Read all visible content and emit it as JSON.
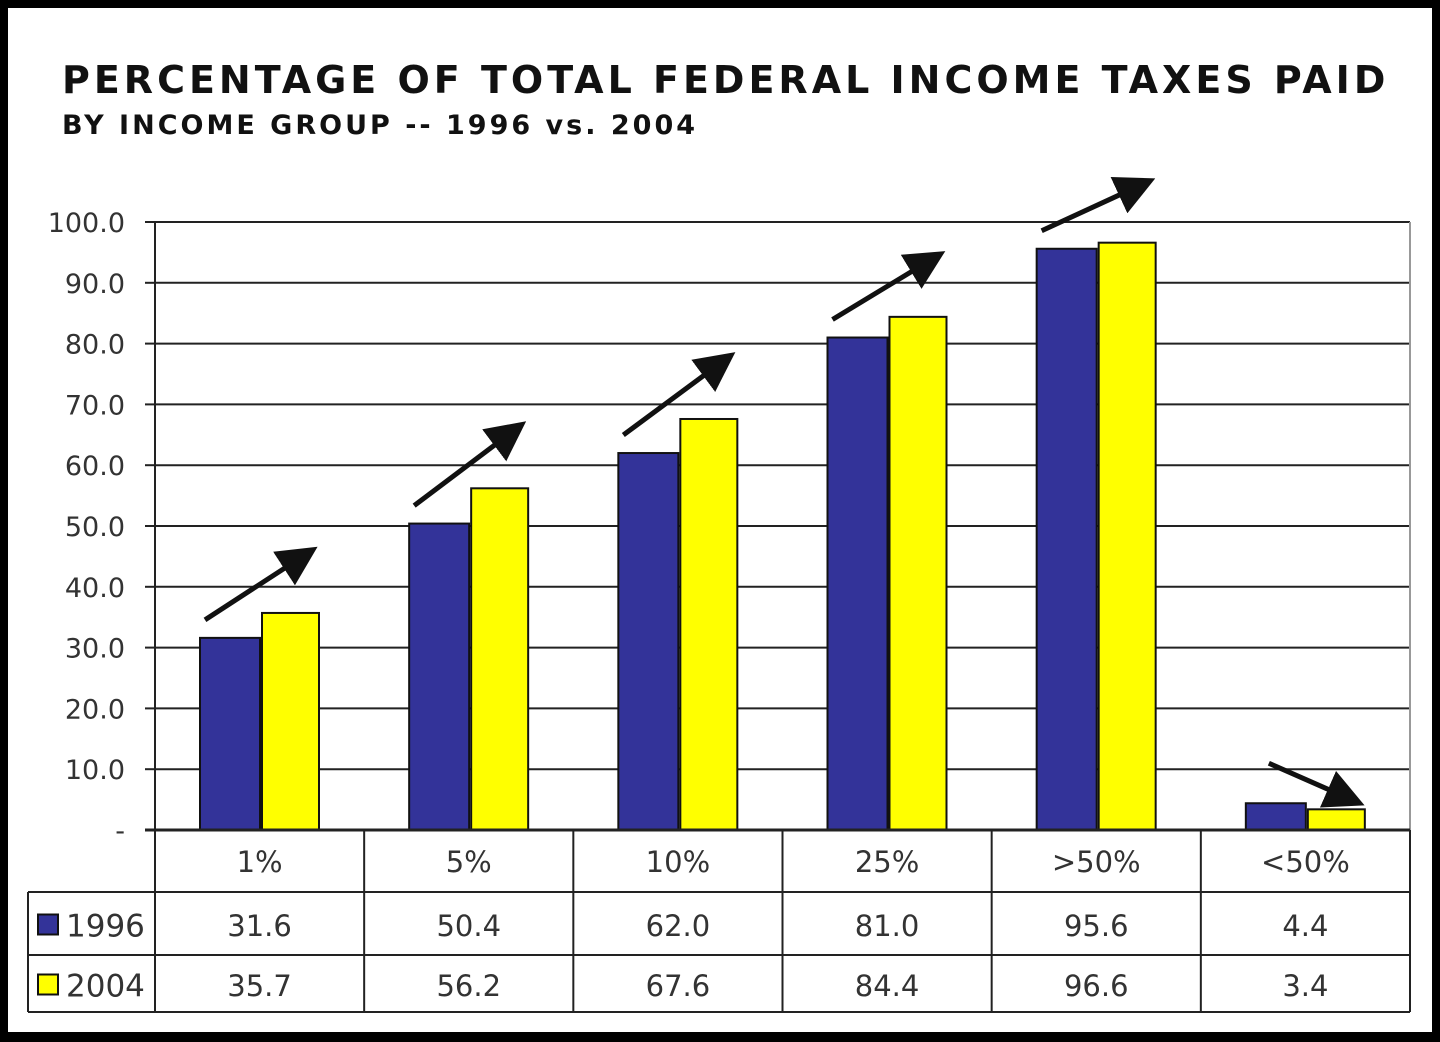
{
  "chart_data": {
    "type": "bar",
    "title": "PERCENTAGE OF TOTAL FEDERAL INCOME TAXES PAID",
    "subtitle": "BY INCOME GROUP -- 1996 vs. 2004",
    "categories": [
      "1%",
      "5%",
      "10%",
      "25%",
      ">50%",
      "<50%"
    ],
    "series": [
      {
        "name": "1996",
        "color": "#333399",
        "values": [
          31.6,
          50.4,
          62.0,
          81.0,
          95.6,
          4.4
        ],
        "labels": [
          "31.6",
          "50.4",
          "62.0",
          "81.0",
          "95.6",
          "4.4"
        ]
      },
      {
        "name": "2004",
        "color": "#ffff00",
        "values": [
          35.7,
          56.2,
          67.6,
          84.4,
          96.6,
          3.4
        ],
        "labels": [
          "35.7",
          "56.2",
          "67.6",
          "84.4",
          "96.6",
          "3.4"
        ]
      }
    ],
    "ylim": [
      0,
      100
    ],
    "yticks": [
      "-",
      "10.0",
      "20.0",
      "30.0",
      "40.0",
      "50.0",
      "60.0",
      "70.0",
      "80.0",
      "90.0",
      "100.0"
    ],
    "grid": true,
    "legend": "data-table",
    "trend_arrows": [
      "up",
      "up",
      "up",
      "up",
      "up",
      "down"
    ]
  }
}
